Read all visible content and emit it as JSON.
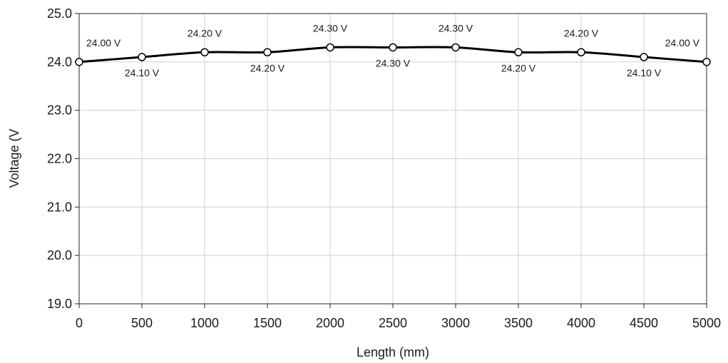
{
  "chart_data": {
    "type": "line",
    "title": "",
    "xlabel": "Length (mm)",
    "ylabel": "Voltage (V",
    "x": [
      0,
      500,
      1000,
      1500,
      2000,
      2500,
      3000,
      3500,
      4000,
      4500,
      5000
    ],
    "series": [
      {
        "values": [
          24.0,
          24.1,
          24.2,
          24.2,
          24.3,
          24.3,
          24.3,
          24.2,
          24.2,
          24.1,
          24.0
        ],
        "data_labels": [
          "24.00 V",
          "24.10 V",
          "24.20 V",
          "24.20 V",
          "24.30 V",
          "24.30 V",
          "24.30 V",
          "24.20 V",
          "24.20 V",
          "24.10 V",
          "24.00 V"
        ],
        "color": "#000000",
        "marker": "open-circle",
        "smoothed": true
      }
    ],
    "xlim": [
      0,
      5000
    ],
    "ylim": [
      19.0,
      25.0
    ],
    "x_ticks": [
      "0",
      "500",
      "1000",
      "1500",
      "2000",
      "2500",
      "3000",
      "3500",
      "4000",
      "4500",
      "5000"
    ],
    "y_ticks": [
      "19.0",
      "20.0",
      "21.0",
      "22.0",
      "23.0",
      "24.0",
      "25.0"
    ],
    "grid": true,
    "legend": "none"
  }
}
